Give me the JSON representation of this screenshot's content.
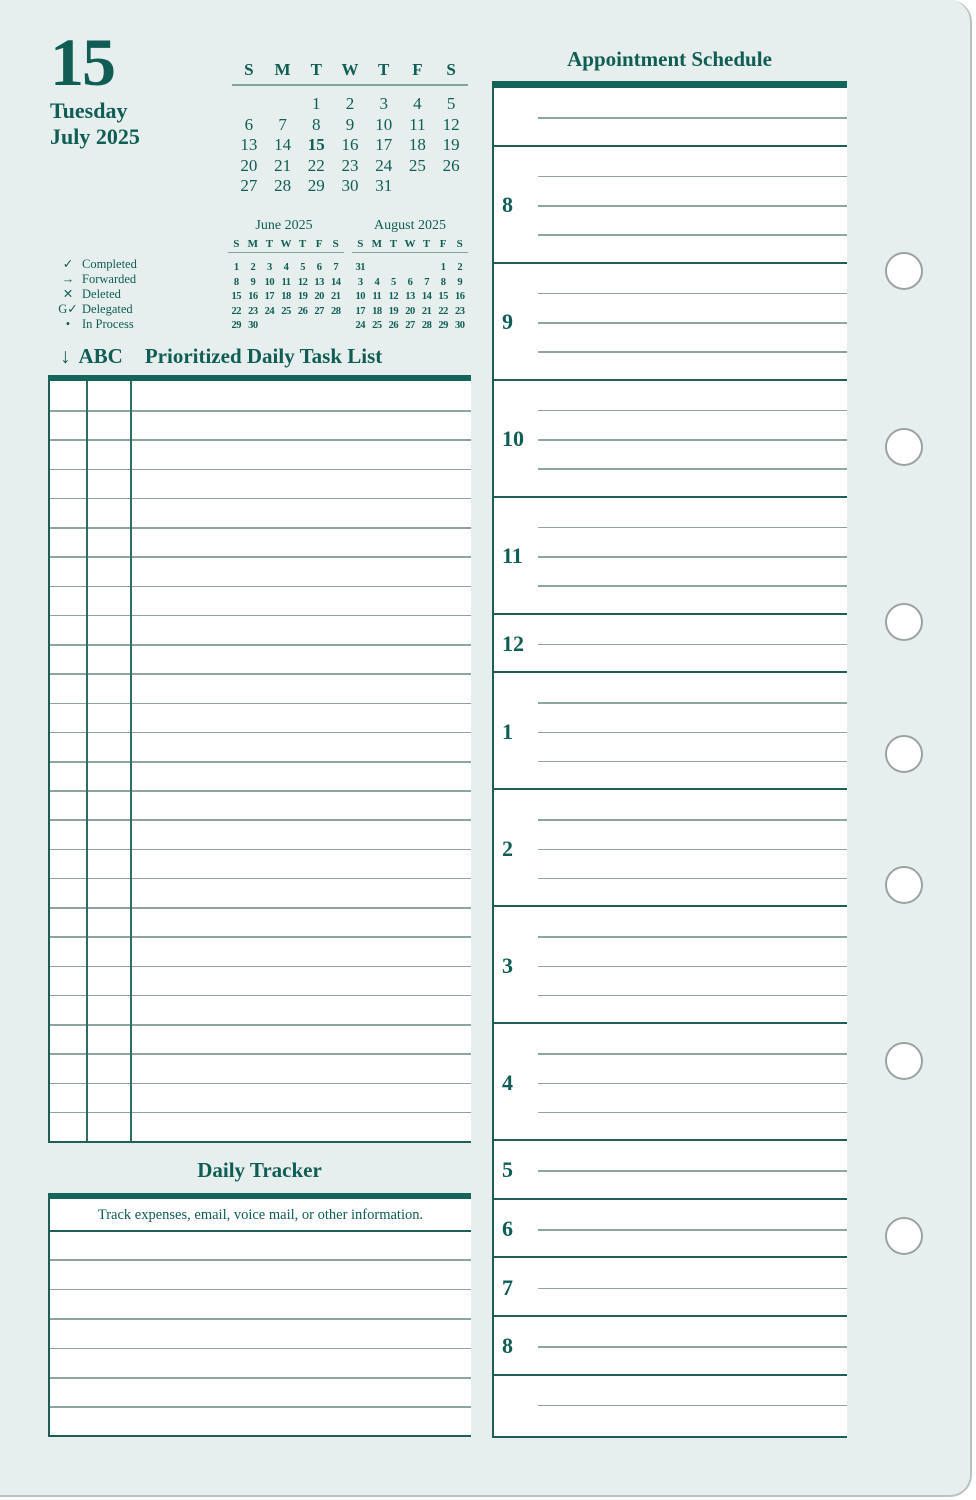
{
  "header": {
    "day": "15",
    "weekday": "Tuesday",
    "month_year": "July 2025"
  },
  "current_month": {
    "weekdays": [
      "S",
      "M",
      "T",
      "W",
      "T",
      "F",
      "S"
    ],
    "weeks": [
      [
        "",
        "",
        "1",
        "2",
        "3",
        "4",
        "5"
      ],
      [
        "6",
        "7",
        "8",
        "9",
        "10",
        "11",
        "12"
      ],
      [
        "13",
        "14",
        "15",
        "16",
        "17",
        "18",
        "19"
      ],
      [
        "20",
        "21",
        "22",
        "23",
        "24",
        "25",
        "26"
      ],
      [
        "27",
        "28",
        "29",
        "30",
        "31",
        "",
        ""
      ]
    ],
    "highlight": "15"
  },
  "prev_month": {
    "title": "June 2025",
    "weekdays": [
      "S",
      "M",
      "T",
      "W",
      "T",
      "F",
      "S"
    ],
    "weeks": [
      [
        "1",
        "2",
        "3",
        "4",
        "5",
        "6",
        "7"
      ],
      [
        "8",
        "9",
        "10",
        "11",
        "12",
        "13",
        "14"
      ],
      [
        "15",
        "16",
        "17",
        "18",
        "19",
        "20",
        "21"
      ],
      [
        "22",
        "23",
        "24",
        "25",
        "26",
        "27",
        "28"
      ],
      [
        "29",
        "30",
        "",
        "",
        "",
        "",
        ""
      ]
    ]
  },
  "next_month": {
    "title": "August 2025",
    "weekdays": [
      "S",
      "M",
      "T",
      "W",
      "T",
      "F",
      "S"
    ],
    "weeks": [
      [
        "31",
        "",
        "",
        "",
        "",
        "1",
        "2"
      ],
      [
        "3",
        "4",
        "5",
        "6",
        "7",
        "8",
        "9"
      ],
      [
        "10",
        "11",
        "12",
        "13",
        "14",
        "15",
        "16"
      ],
      [
        "17",
        "18",
        "19",
        "20",
        "21",
        "22",
        "23"
      ],
      [
        "24",
        "25",
        "26",
        "27",
        "28",
        "29",
        "30"
      ]
    ]
  },
  "legend": [
    {
      "symbol": "✓",
      "label": "Completed"
    },
    {
      "symbol": "→",
      "label": "Forwarded"
    },
    {
      "symbol": "✕",
      "label": "Deleted"
    },
    {
      "symbol": "G✓",
      "label": "Delegated"
    },
    {
      "symbol": "•",
      "label": "In Process"
    }
  ],
  "task_list": {
    "arrow": "↓",
    "abc": "ABC",
    "title": "Prioritized Daily Task List"
  },
  "tracker": {
    "title": "Daily Tracker",
    "hint": "Track expenses, email, voice mail, or other information."
  },
  "appointments": {
    "title": "Appointment Schedule",
    "hours": [
      "",
      "8",
      "9",
      "10",
      "11",
      "12",
      "1",
      "2",
      "3",
      "4",
      "5",
      "6",
      "7",
      "8",
      ""
    ]
  },
  "colors": {
    "ink": "#0f5d54",
    "page": "#e7efee"
  }
}
